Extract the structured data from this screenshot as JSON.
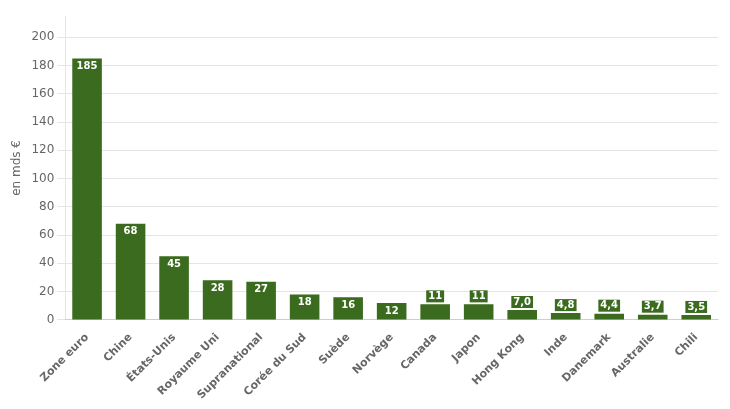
{
  "chart_data": {
    "type": "bar",
    "categories": [
      "Zone euro",
      "Chine",
      "États-Unis",
      "Royaume Uni",
      "Supranational",
      "Corée du Sud",
      "Suède",
      "Norvège",
      "Canada",
      "Japon",
      "Hong Kong",
      "Inde",
      "Danemark",
      "Australie",
      "Chili"
    ],
    "values": [
      185,
      68,
      45,
      28,
      27,
      18,
      16,
      12,
      11,
      11,
      7.0,
      4.8,
      4.4,
      3.7,
      3.5
    ],
    "value_labels": [
      "185",
      "68",
      "45",
      "28",
      "27",
      "18",
      "16",
      "12",
      "11",
      "11",
      "7,0",
      "4,8",
      "4,4",
      "3,7",
      "3,5"
    ],
    "data_labels": true,
    "color": "#3a6b1e",
    "ylabel": "en mds €",
    "ylim": [
      0,
      215
    ],
    "yticks": [
      0,
      20,
      40,
      60,
      80,
      100,
      120,
      140,
      160,
      180,
      200
    ],
    "grid": true
  }
}
